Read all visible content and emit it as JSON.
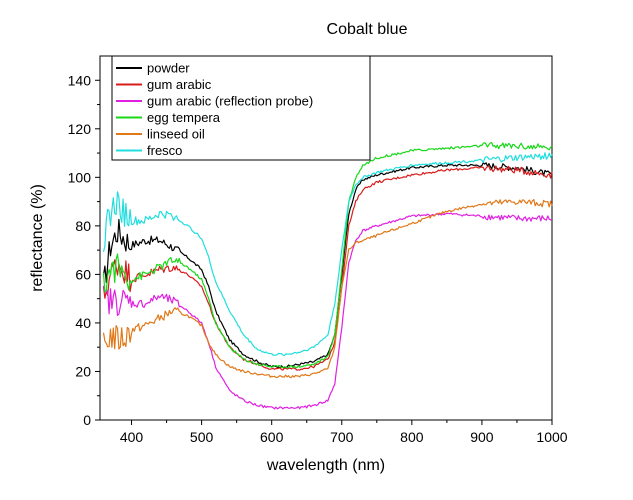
{
  "chart_data": {
    "type": "line",
    "title": "Cobalt blue",
    "xlabel": "wavelength (nm)",
    "ylabel": "reflectance (%)",
    "xlim": [
      355,
      1000
    ],
    "ylim": [
      0,
      150
    ],
    "xticks": [
      400,
      500,
      600,
      700,
      800,
      900,
      1000
    ],
    "yticks": [
      0,
      20,
      40,
      60,
      80,
      100,
      120,
      140
    ],
    "legend_position": "top-left",
    "grid": false,
    "series": [
      {
        "name": "powder",
        "color": "#000000",
        "points": [
          [
            360,
            55
          ],
          [
            370,
            72
          ],
          [
            380,
            78
          ],
          [
            390,
            75
          ],
          [
            400,
            72
          ],
          [
            420,
            74
          ],
          [
            440,
            74
          ],
          [
            460,
            71
          ],
          [
            480,
            67
          ],
          [
            500,
            62
          ],
          [
            510,
            55
          ],
          [
            520,
            45
          ],
          [
            540,
            33
          ],
          [
            560,
            27
          ],
          [
            580,
            24
          ],
          [
            600,
            22
          ],
          [
            620,
            22
          ],
          [
            640,
            23
          ],
          [
            660,
            24
          ],
          [
            680,
            27
          ],
          [
            690,
            35
          ],
          [
            700,
            60
          ],
          [
            710,
            85
          ],
          [
            720,
            95
          ],
          [
            730,
            99
          ],
          [
            750,
            101
          ],
          [
            800,
            104
          ],
          [
            850,
            105
          ],
          [
            900,
            105
          ],
          [
            950,
            104
          ],
          [
            1000,
            101
          ]
        ]
      },
      {
        "name": "gum arabic",
        "color": "#d81b1b",
        "points": [
          [
            360,
            50
          ],
          [
            370,
            60
          ],
          [
            380,
            65
          ],
          [
            390,
            62
          ],
          [
            400,
            58
          ],
          [
            420,
            60
          ],
          [
            440,
            62
          ],
          [
            460,
            63
          ],
          [
            480,
            60
          ],
          [
            500,
            55
          ],
          [
            510,
            48
          ],
          [
            520,
            40
          ],
          [
            540,
            30
          ],
          [
            560,
            25
          ],
          [
            580,
            23
          ],
          [
            600,
            21
          ],
          [
            620,
            21
          ],
          [
            640,
            21
          ],
          [
            660,
            22
          ],
          [
            680,
            25
          ],
          [
            690,
            32
          ],
          [
            700,
            55
          ],
          [
            710,
            80
          ],
          [
            720,
            90
          ],
          [
            730,
            95
          ],
          [
            750,
            98
          ],
          [
            800,
            101
          ],
          [
            850,
            103
          ],
          [
            900,
            104
          ],
          [
            950,
            103
          ],
          [
            1000,
            101
          ]
        ]
      },
      {
        "name": "gum arabic (reflection probe)",
        "color": "#e020e0",
        "points": [
          [
            360,
            50
          ],
          [
            370,
            49
          ],
          [
            380,
            49
          ],
          [
            390,
            49
          ],
          [
            400,
            48
          ],
          [
            420,
            48
          ],
          [
            440,
            51
          ],
          [
            460,
            49
          ],
          [
            480,
            45
          ],
          [
            500,
            40
          ],
          [
            510,
            32
          ],
          [
            520,
            22
          ],
          [
            540,
            12
          ],
          [
            560,
            8
          ],
          [
            580,
            6
          ],
          [
            600,
            5
          ],
          [
            620,
            5
          ],
          [
            640,
            5
          ],
          [
            660,
            6
          ],
          [
            680,
            8
          ],
          [
            690,
            15
          ],
          [
            700,
            38
          ],
          [
            710,
            65
          ],
          [
            720,
            74
          ],
          [
            730,
            78
          ],
          [
            750,
            80
          ],
          [
            800,
            84
          ],
          [
            850,
            85
          ],
          [
            900,
            84
          ],
          [
            950,
            83
          ],
          [
            1000,
            83
          ]
        ]
      },
      {
        "name": "egg tempera",
        "color": "#18d818",
        "points": [
          [
            360,
            55
          ],
          [
            370,
            62
          ],
          [
            380,
            63
          ],
          [
            390,
            60
          ],
          [
            400,
            58
          ],
          [
            420,
            60
          ],
          [
            440,
            63
          ],
          [
            460,
            66
          ],
          [
            480,
            63
          ],
          [
            500,
            58
          ],
          [
            510,
            50
          ],
          [
            520,
            40
          ],
          [
            540,
            30
          ],
          [
            560,
            25
          ],
          [
            580,
            23
          ],
          [
            600,
            22
          ],
          [
            620,
            22
          ],
          [
            640,
            22
          ],
          [
            660,
            23
          ],
          [
            680,
            26
          ],
          [
            690,
            35
          ],
          [
            700,
            62
          ],
          [
            710,
            90
          ],
          [
            720,
            100
          ],
          [
            730,
            105
          ],
          [
            750,
            108
          ],
          [
            800,
            111
          ],
          [
            850,
            112
          ],
          [
            900,
            113
          ],
          [
            950,
            113
          ],
          [
            1000,
            112
          ]
        ]
      },
      {
        "name": "linseed oil",
        "color": "#e07818",
        "points": [
          [
            360,
            30
          ],
          [
            370,
            35
          ],
          [
            380,
            33
          ],
          [
            390,
            34
          ],
          [
            400,
            37
          ],
          [
            420,
            39
          ],
          [
            440,
            42
          ],
          [
            460,
            45
          ],
          [
            480,
            43
          ],
          [
            500,
            39
          ],
          [
            510,
            32
          ],
          [
            520,
            27
          ],
          [
            540,
            22
          ],
          [
            560,
            20
          ],
          [
            580,
            19
          ],
          [
            600,
            18
          ],
          [
            620,
            18
          ],
          [
            640,
            18
          ],
          [
            660,
            19
          ],
          [
            680,
            21
          ],
          [
            690,
            30
          ],
          [
            700,
            55
          ],
          [
            710,
            70
          ],
          [
            720,
            73
          ],
          [
            730,
            74
          ],
          [
            750,
            76
          ],
          [
            800,
            81
          ],
          [
            850,
            86
          ],
          [
            900,
            89
          ],
          [
            950,
            90
          ],
          [
            1000,
            89
          ]
        ]
      },
      {
        "name": "fresco",
        "color": "#20dede",
        "points": [
          [
            360,
            75
          ],
          [
            370,
            85
          ],
          [
            380,
            90
          ],
          [
            390,
            85
          ],
          [
            400,
            82
          ],
          [
            420,
            82
          ],
          [
            440,
            85
          ],
          [
            460,
            84
          ],
          [
            480,
            80
          ],
          [
            500,
            75
          ],
          [
            510,
            67
          ],
          [
            520,
            57
          ],
          [
            540,
            45
          ],
          [
            560,
            35
          ],
          [
            580,
            29
          ],
          [
            600,
            27
          ],
          [
            620,
            27
          ],
          [
            640,
            28
          ],
          [
            660,
            30
          ],
          [
            680,
            35
          ],
          [
            690,
            48
          ],
          [
            700,
            70
          ],
          [
            710,
            90
          ],
          [
            720,
            97
          ],
          [
            730,
            100
          ],
          [
            750,
            102
          ],
          [
            800,
            105
          ],
          [
            850,
            106
          ],
          [
            900,
            107
          ],
          [
            950,
            108
          ],
          [
            1000,
            109
          ]
        ]
      }
    ]
  }
}
